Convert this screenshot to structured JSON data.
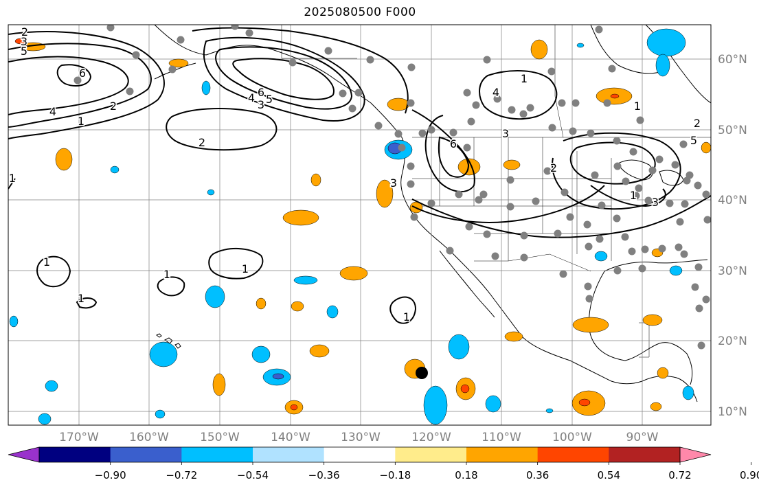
{
  "title": "2025080500 F000",
  "axes": {
    "lat_labels": [
      "60°N",
      "50°N",
      "40°N",
      "30°N",
      "20°N",
      "10°N"
    ],
    "lon_labels": [
      "170°W",
      "160°W",
      "150°W",
      "140°W",
      "130°W",
      "120°W",
      "110°W",
      "100°W",
      "90°W"
    ],
    "label_color": "#808080",
    "gridlines": true
  },
  "colorbar": {
    "colors": [
      "#9932cc",
      "#000080",
      "#3a5fcd",
      "#00bfff",
      "#b0e2ff",
      "#ffffff",
      "#ffec8b",
      "#ffa500",
      "#ff4500",
      "#b22222",
      "#ff88aa"
    ],
    "tick_labels": [
      "−0.90",
      "−0.72",
      "−0.54",
      "−0.36",
      "−0.18",
      "0.18",
      "0.36",
      "0.54",
      "0.72",
      "0.90"
    ],
    "extend": "both"
  },
  "contour_labels": [
    "2",
    "3",
    "5",
    "6",
    "4",
    "1",
    "2",
    "6",
    "5",
    "4",
    "3",
    "2",
    "1",
    "1",
    "1",
    "1",
    "1",
    "1",
    "1",
    "6",
    "4",
    "3",
    "2",
    "1",
    "3",
    "2",
    "1",
    "5",
    "3"
  ],
  "station_color": "#808080",
  "marker_color": "#000000"
}
